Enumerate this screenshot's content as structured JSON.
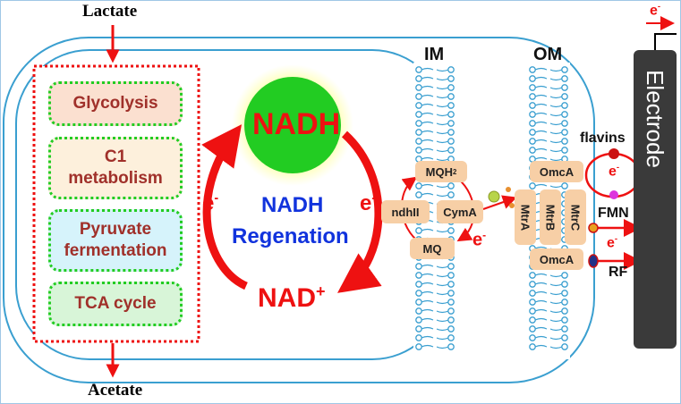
{
  "substrate": {
    "input": "Lactate",
    "output": "Acetate"
  },
  "pathways": [
    {
      "label": "Glycolysis",
      "fill": "#fbe0d0"
    },
    {
      "label": "C1 metabolism",
      "fill": "#fdf0dc"
    },
    {
      "label": "Pyruvate fermentation",
      "fill": "#d6f3fb"
    },
    {
      "label": "TCA cycle",
      "fill": "#d8f5d8"
    }
  ],
  "cycle": {
    "nadh": "NADH",
    "nad_base": "NAD",
    "nad_charge": "+",
    "title_line1": "NADH",
    "title_line2": "Regenation",
    "electron": "e",
    "electron_charge": "-"
  },
  "membranes": {
    "inner": "IM",
    "outer": "OM"
  },
  "proteins": {
    "mqh2_base": "MQH",
    "mqh2_sub": "2",
    "mq": "MQ",
    "ndhii": "ndhII",
    "cyma": "CymA",
    "omca_top": "OmcA",
    "omca_bottom": "OmcA",
    "mtra": "MtrA",
    "mtrb": "MtrB",
    "mtrc": "MtrC"
  },
  "shuttles": {
    "flavins": "flavins",
    "fmn": "FMN",
    "rf": "RF"
  },
  "electrode": {
    "label": "Electrode"
  },
  "colors": {
    "red": "#ee1111",
    "blue": "#1133dd",
    "membrane": "#3a9fd0",
    "protein": "#f7cfa6",
    "electrode": "#3a3a3a",
    "nadh_sphere": "#22cc22"
  }
}
